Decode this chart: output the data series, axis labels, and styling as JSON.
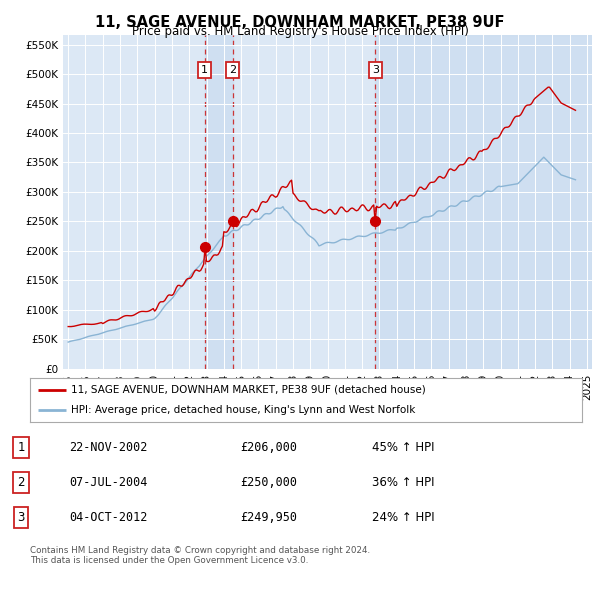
{
  "title": "11, SAGE AVENUE, DOWNHAM MARKET, PE38 9UF",
  "subtitle": "Price paid vs. HM Land Registry's House Price Index (HPI)",
  "legend_line1": "11, SAGE AVENUE, DOWNHAM MARKET, PE38 9UF (detached house)",
  "legend_line2": "HPI: Average price, detached house, King's Lynn and West Norfolk",
  "footer1": "Contains HM Land Registry data © Crown copyright and database right 2024.",
  "footer2": "This data is licensed under the Open Government Licence v3.0.",
  "sales": [
    {
      "label": "1",
      "date": "22-NOV-2002",
      "price": 206000,
      "hpi_pct": "45% ↑ HPI",
      "x_year": 2002.89
    },
    {
      "label": "2",
      "date": "07-JUL-2004",
      "price": 250000,
      "hpi_pct": "36% ↑ HPI",
      "x_year": 2004.51
    },
    {
      "label": "3",
      "date": "04-OCT-2012",
      "price": 249950,
      "hpi_pct": "24% ↑ HPI",
      "x_year": 2012.76
    }
  ],
  "hpi_color": "#8ab4d4",
  "price_color": "#cc0000",
  "vline_color": "#cc2222",
  "background_color": "#dce8f5",
  "shade_color": "#ccddf0",
  "ylim_max": 560000,
  "xlim_start": 1994.7,
  "xlim_end": 2025.3,
  "yticks": [
    0,
    50000,
    100000,
    150000,
    200000,
    250000,
    300000,
    350000,
    400000,
    450000,
    500000,
    550000
  ],
  "ytick_labels": [
    "£0",
    "£50K",
    "£100K",
    "£150K",
    "£200K",
    "£250K",
    "£300K",
    "£350K",
    "£400K",
    "£450K",
    "£500K",
    "£550K"
  ]
}
